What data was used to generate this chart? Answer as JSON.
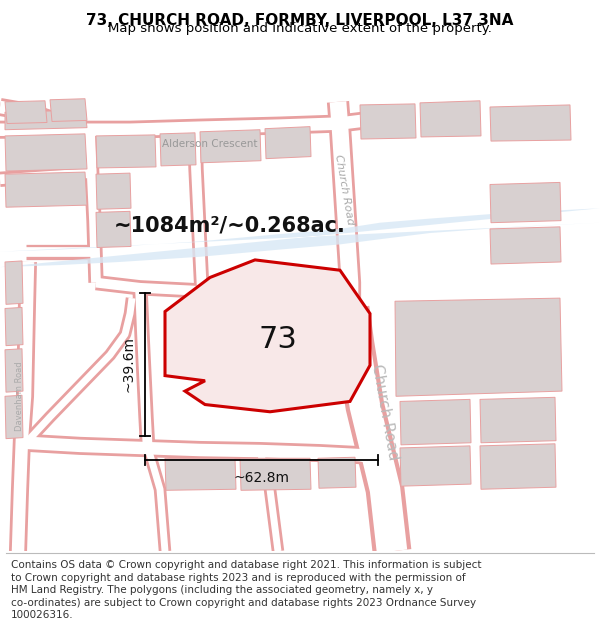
{
  "title": "73, CHURCH ROAD, FORMBY, LIVERPOOL, L37 3NA",
  "subtitle": "Map shows position and indicative extent of the property.",
  "title_fontsize": 11,
  "subtitle_fontsize": 9.5,
  "footer_fontsize": 7.5,
  "figsize": [
    6.0,
    6.25
  ],
  "dpi": 100,
  "map_bg": "#ffffff",
  "road_outline_color": "#e8a0a0",
  "road_fill_color": "#ffffff",
  "block_fill": "#d8d0d0",
  "block_edge": "#e8a0a0",
  "water_color": "#c8ddf0",
  "highlight_color": "#cc0000",
  "highlight_fill": "#f8e8e8",
  "highlight_lw": 2.2,
  "area_label": "~1084m²/~0.268ac.",
  "area_label_size": 15,
  "label_73_size": 22,
  "dim_fontsize": 10,
  "width_label": "~62.8m",
  "height_label": "~39.6m",
  "street_alderson": "Alderson Crescent",
  "street_church_upper": "Church Road",
  "street_church_main": "Church Road",
  "street_davenham": "Davenham Road",
  "footer_lines": [
    "Contains OS data © Crown copyright and database right 2021. This information is subject",
    "to Crown copyright and database rights 2023 and is reproduced with the permission of",
    "HM Land Registry. The polygons (including the associated geometry, namely x, y",
    "co-ordinates) are subject to Crown copyright and database rights 2023 Ordnance Survey",
    "100026316."
  ]
}
